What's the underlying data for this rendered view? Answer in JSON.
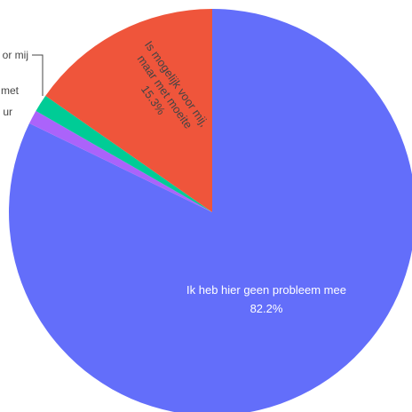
{
  "chart_data": {
    "type": "pie",
    "slices": [
      {
        "label": "Ik heb hier geen probleem mee",
        "value": 82.2,
        "color": "#636efa",
        "text_color": "#ffffff",
        "display": "82.2%"
      },
      {
        "label": "Hierbij heb ik hulp nodig van een assistent of mentor",
        "value": 1.1,
        "color": "#ab63fa"
      },
      {
        "label": "Hierbij heb ik hulp nodig van een leerkracht of mentor",
        "value": 1.4,
        "color": "#00cc96"
      },
      {
        "label": "Is mogelijk voor mij, maar met moeite",
        "value": 15.3,
        "color": "#ef553b",
        "text_color": "#444444",
        "display": "15.3%"
      }
    ],
    "outside_labels": {
      "upper": "or mij",
      "lower_line1": "met",
      "lower_line2": "ur"
    },
    "inside_labels": {
      "red_line1": "Is mogelijk voor mij,",
      "red_line2": "maar met moeite",
      "red_line3": "15.3%",
      "blue_line1": "Ik heb hier geen probleem mee",
      "blue_line2": "82.2%"
    }
  }
}
